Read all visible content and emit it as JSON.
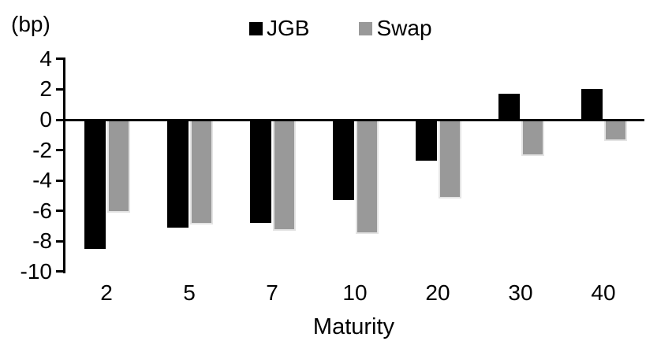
{
  "chart_data": {
    "type": "bar",
    "title": "",
    "unit_label": "(bp)",
    "xlabel": "Maturity",
    "ylabel": "",
    "categories": [
      "2",
      "5",
      "7",
      "10",
      "20",
      "30",
      "40"
    ],
    "series": [
      {
        "name": "JGB",
        "color": "#000000",
        "values": [
          -8.5,
          -7.1,
          -6.8,
          -5.3,
          -2.7,
          1.7,
          2.0
        ]
      },
      {
        "name": "Swap",
        "color": "#999999",
        "values": [
          -6.1,
          -6.9,
          -7.3,
          -7.5,
          -5.2,
          -2.4,
          -1.4
        ]
      }
    ],
    "y_ticks": [
      4,
      2,
      0,
      -2,
      -4,
      -6,
      -8,
      -10
    ],
    "ylim": [
      -10,
      4
    ],
    "legend_position": "top-center",
    "grid": false,
    "colors": {
      "jgb_bar": "#000000",
      "swap_bar": "#999999",
      "swap_bar_border": "#e4e4e4",
      "axis": "#000000",
      "text": "#000000",
      "background": "#ffffff"
    }
  }
}
